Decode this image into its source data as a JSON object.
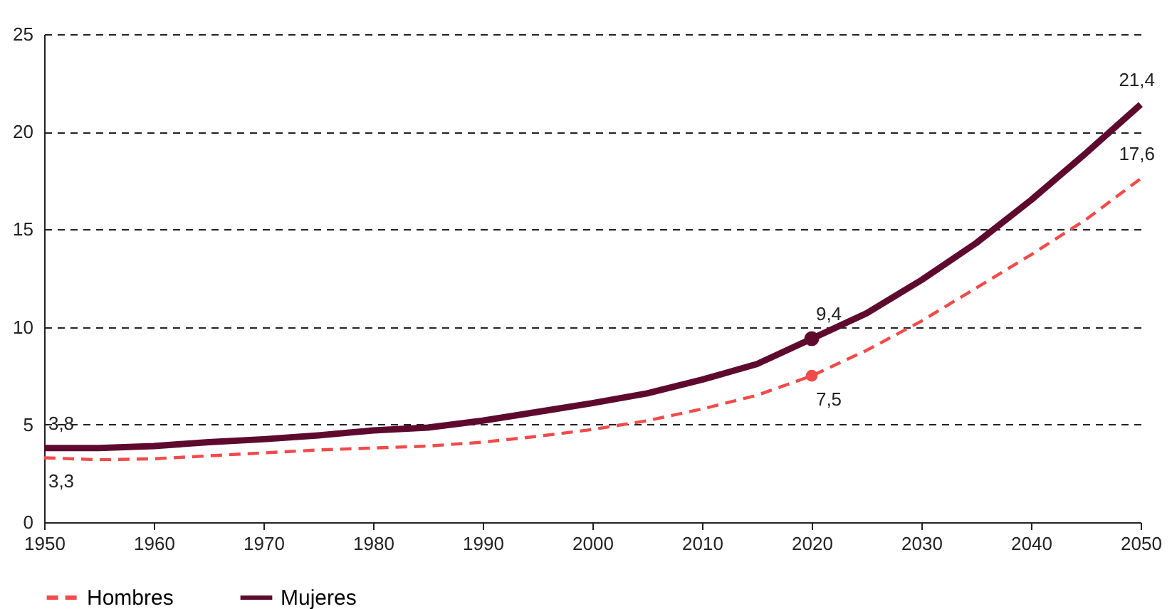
{
  "chart_data": {
    "type": "line",
    "x": [
      1950,
      1955,
      1960,
      1965,
      1970,
      1975,
      1980,
      1985,
      1990,
      1995,
      2000,
      2005,
      2010,
      2015,
      2020,
      2025,
      2030,
      2035,
      2040,
      2045,
      2050
    ],
    "series": [
      {
        "name": "Hombres",
        "color": "#f04b4b",
        "line_style": "dashed",
        "values": [
          3.3,
          3.2,
          3.25,
          3.4,
          3.55,
          3.7,
          3.8,
          3.9,
          4.1,
          4.4,
          4.75,
          5.2,
          5.8,
          6.5,
          7.5,
          8.8,
          10.3,
          12.0,
          13.7,
          15.5,
          17.6
        ],
        "value_labels": [
          "3,3",
          null,
          null,
          null,
          null,
          null,
          null,
          null,
          null,
          null,
          null,
          null,
          null,
          null,
          "7,5",
          null,
          null,
          null,
          null,
          null,
          "17,6"
        ]
      },
      {
        "name": "Mujeres",
        "color": "#5e0a2e",
        "line_style": "solid",
        "values": [
          3.8,
          3.8,
          3.9,
          4.1,
          4.25,
          4.45,
          4.7,
          4.85,
          5.2,
          5.65,
          6.1,
          6.6,
          7.3,
          8.1,
          9.4,
          10.7,
          12.4,
          14.3,
          16.5,
          18.9,
          21.4
        ],
        "value_labels": [
          "3,8",
          null,
          null,
          null,
          null,
          null,
          null,
          null,
          null,
          null,
          null,
          null,
          null,
          null,
          "9,4",
          null,
          null,
          null,
          null,
          null,
          "21,4"
        ]
      },
      {
        "type": "scatter",
        "color": "#f04b4b",
        "x": [
          2020
        ],
        "values": [
          7.5
        ],
        "marker": "circle"
      },
      {
        "type": "scatter",
        "color": "#5e0a2e",
        "x": [
          2020
        ],
        "values": [
          9.4
        ],
        "marker": "circle"
      }
    ],
    "xlim": [
      1950,
      2050
    ],
    "xticks": [
      1950,
      1960,
      1970,
      1980,
      1990,
      2000,
      2010,
      2020,
      2030,
      2040,
      2050
    ],
    "ylim": [
      0,
      25
    ],
    "yticks": [
      0,
      5,
      10,
      15,
      20,
      25
    ],
    "grid": "y",
    "legend": "bottom"
  }
}
